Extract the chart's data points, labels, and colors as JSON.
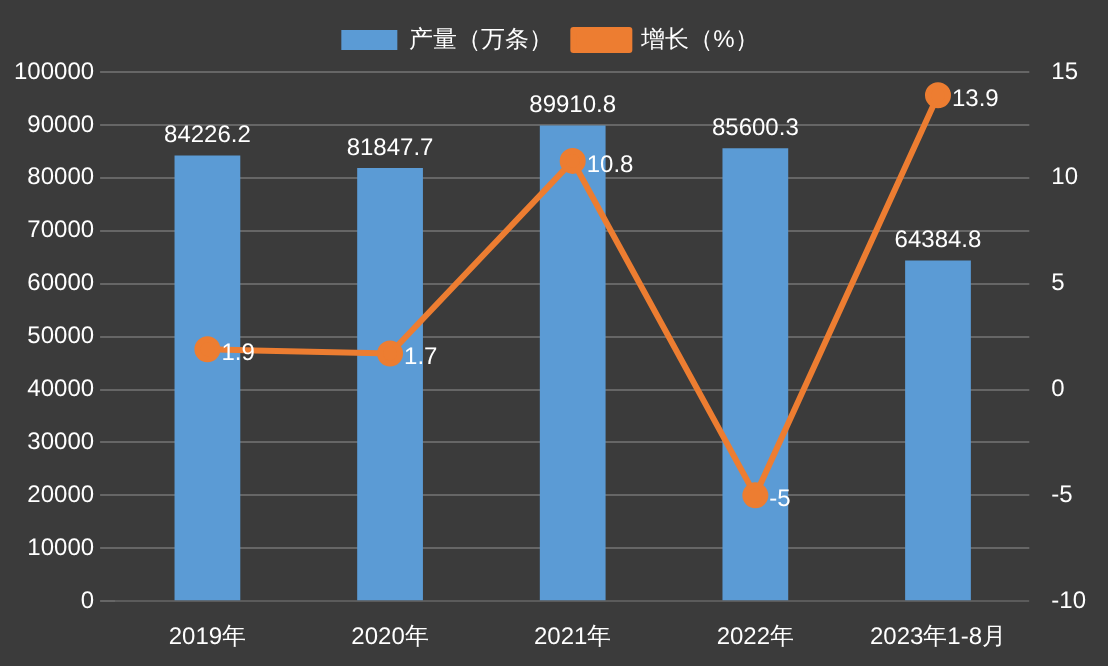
{
  "chart_data": {
    "type": "bar",
    "categories": [
      "2019年",
      "2020年",
      "2021年",
      "2022年",
      "2023年1-8月"
    ],
    "series": [
      {
        "name": "产量（万条）",
        "color": "#5b9bd5",
        "values": [
          84226.2,
          81847.7,
          89910.8,
          85600.3,
          64384.8
        ]
      },
      {
        "name": "增长（%）",
        "type": "line",
        "axis": "y2",
        "color": "#ed7d31",
        "values": [
          1.9,
          1.7,
          10.8,
          -5,
          13.9
        ]
      }
    ],
    "ylim": [
      0,
      100000
    ],
    "yticks": [
      0,
      10000,
      20000,
      30000,
      40000,
      50000,
      60000,
      70000,
      80000,
      90000,
      100000
    ],
    "y2lim": [
      -10,
      15
    ],
    "y2ticks": [
      -10,
      -5,
      0,
      5,
      10,
      15
    ],
    "grid": "y",
    "legend": "top",
    "marker": "circle",
    "line_style": "solid",
    "data_labels": true
  }
}
